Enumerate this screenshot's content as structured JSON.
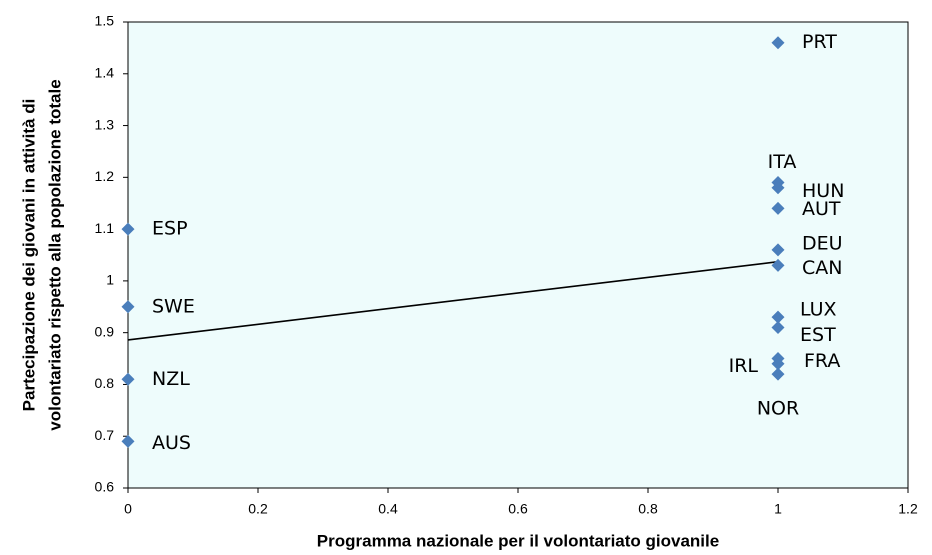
{
  "chart_data": {
    "type": "scatter",
    "xlabel": "Programma nazionale per il volontariato giovanile",
    "ylabel": [
      "Partecipazione dei giovani in attività di",
      "volontariato rispetto alla popolazione totale"
    ],
    "xlim": [
      0,
      1.2
    ],
    "xticks": [
      0,
      0.2,
      0.4,
      0.6,
      0.8,
      1,
      1.2
    ],
    "ylim": [
      0.6,
      1.5
    ],
    "yticks": [
      0.6,
      0.7,
      0.8,
      0.9,
      1,
      1.1,
      1.2,
      1.3,
      1.4,
      1.5
    ],
    "background": "#eefcfc",
    "series": [
      {
        "color": "#4a7ebb",
        "labels": [
          "PRT",
          "ITA",
          "HUN",
          "AUT",
          "DEU",
          "CAN",
          "LUX",
          "EST",
          "FRA",
          "IRL",
          "NOR",
          "ESP",
          "SWE",
          "NZL",
          "AUS"
        ],
        "x": [
          1,
          1,
          1,
          1,
          1,
          1,
          1,
          1,
          1,
          1,
          1,
          0,
          0,
          0,
          0
        ],
        "values": [
          1.46,
          1.19,
          1.18,
          1.14,
          1.06,
          1.03,
          0.93,
          0.91,
          0.85,
          0.84,
          0.82,
          1.1,
          0.95,
          0.81,
          0.69
        ]
      }
    ],
    "trendline": {
      "color": "#000000",
      "x": [
        0,
        1
      ],
      "values": [
        0.886,
        1.037
      ]
    }
  }
}
